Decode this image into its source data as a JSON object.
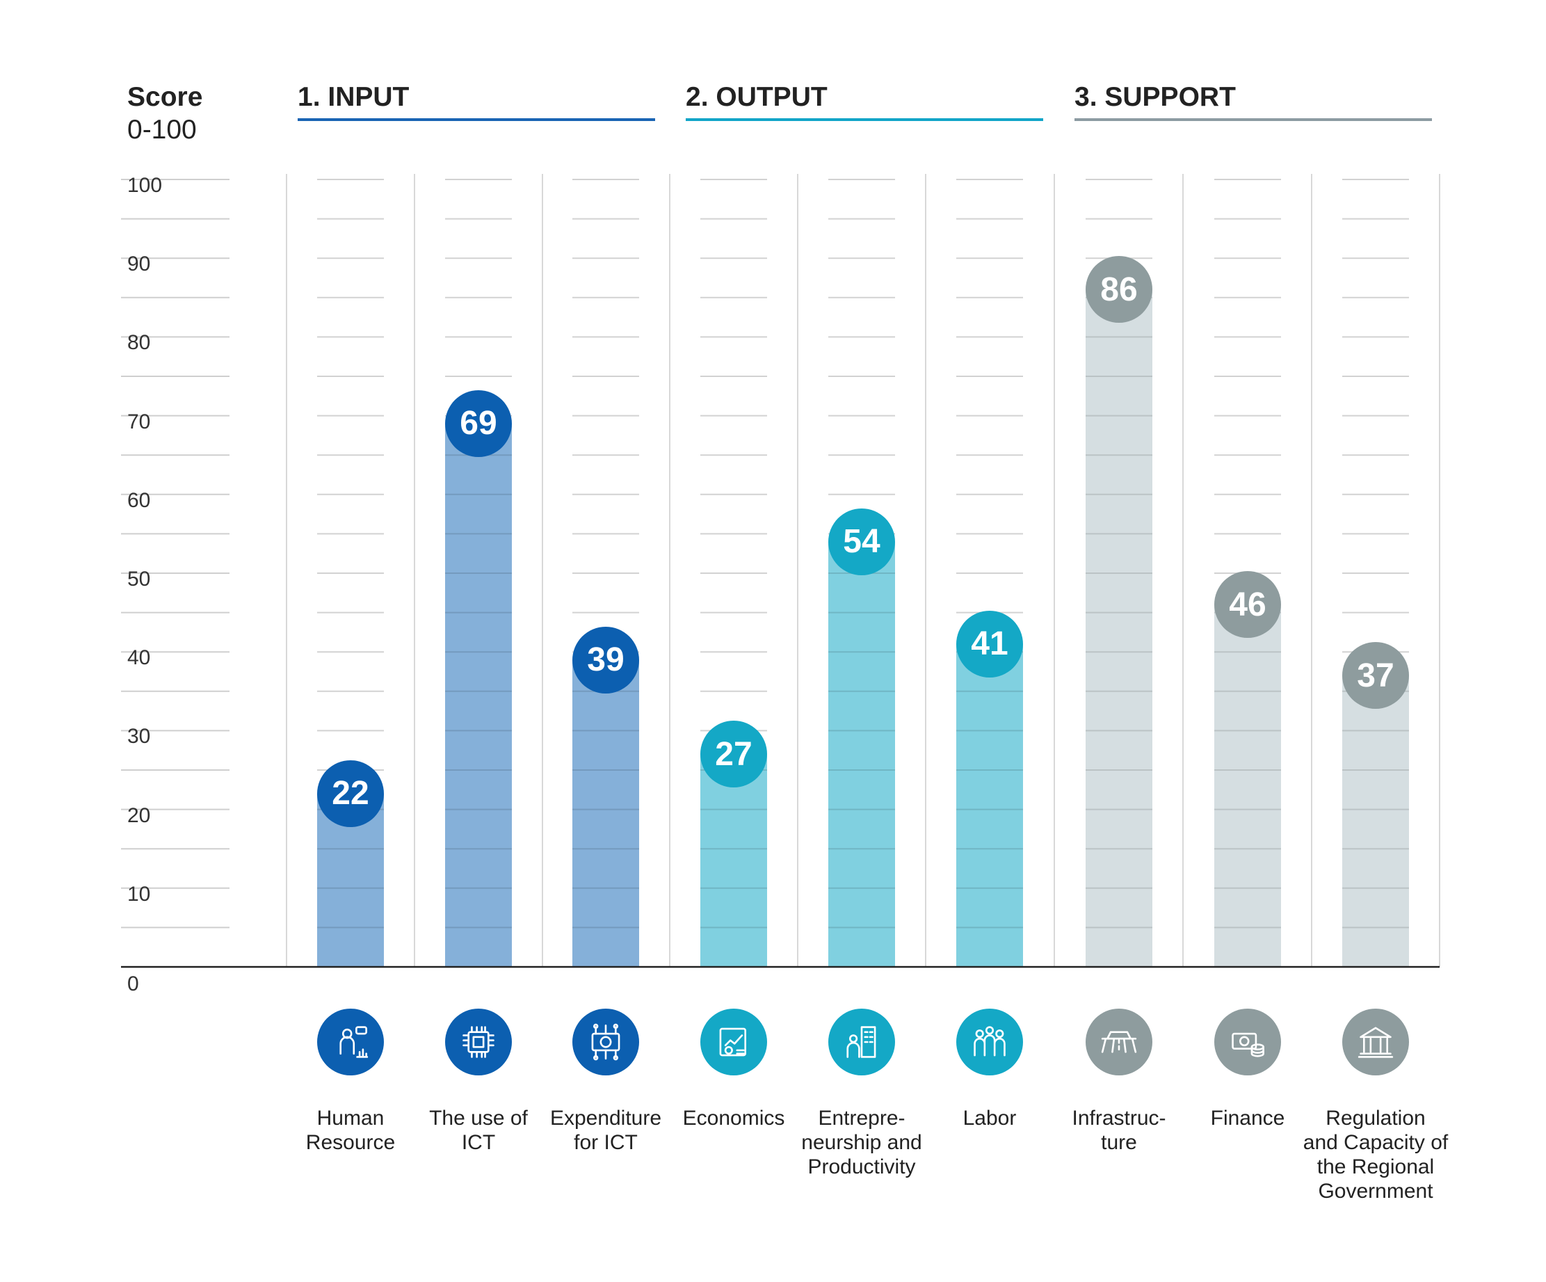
{
  "y_axis": {
    "title": "Score",
    "range_label": "0-100"
  },
  "groups": [
    {
      "label": "1. INPUT",
      "color": "#1a64b4"
    },
    {
      "label": "2. OUTPUT",
      "color": "#12a5c8"
    },
    {
      "label": "3. SUPPORT",
      "color": "#8c9ba2"
    }
  ],
  "chart_data": {
    "type": "bar",
    "ylim": [
      0,
      100
    ],
    "yticks": [
      "0",
      "10",
      "20",
      "30",
      "40",
      "50",
      "60",
      "70",
      "80",
      "90",
      "100"
    ],
    "categories": [
      "Human\nResource",
      "The use of\nICT",
      "Expenditure\nfor ICT",
      "Economics",
      "Entrepre-\nneurship and\nProductivity",
      "Labor",
      "Infrastruc-\nture",
      "Finance",
      "Regulation\nand Capacity of\nthe Regional\nGovernment"
    ],
    "values": [
      22,
      69,
      39,
      27,
      54,
      41,
      86,
      46,
      37
    ],
    "value_labels": [
      "22",
      "69",
      "39",
      "27",
      "54",
      "41",
      "86",
      "46",
      "37"
    ],
    "bar_groups": [
      0,
      0,
      0,
      1,
      1,
      1,
      2,
      2,
      2
    ],
    "icons": [
      "human-resource-icon",
      "chip-icon",
      "money-circuit-icon",
      "economics-chart-icon",
      "entrepreneur-building-icon",
      "labor-people-icon",
      "road-icon",
      "money-coins-icon",
      "government-building-icon"
    ],
    "colors": {
      "bar_fills": [
        "#85b0d9",
        "#80d0e0",
        "#d5dee1"
      ],
      "bubbles": [
        "#0c5fb0",
        "#14a8c6",
        "#8e9c9e"
      ]
    },
    "grid": true
  }
}
